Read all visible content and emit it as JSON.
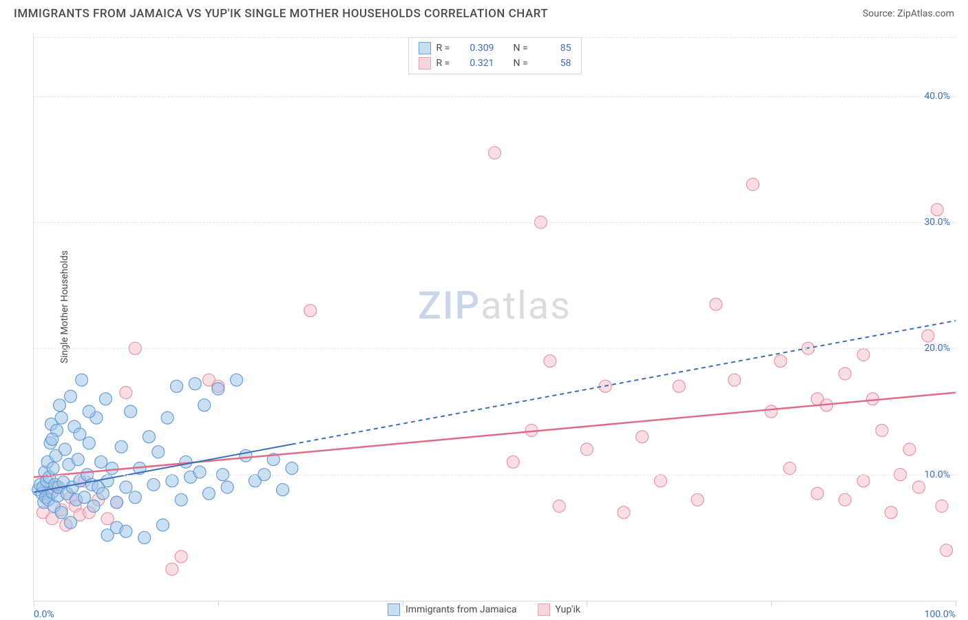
{
  "title": "IMMIGRANTS FROM JAMAICA VS YUP'IK SINGLE MOTHER HOUSEHOLDS CORRELATION CHART",
  "source_prefix": "Source: ",
  "source_link": "ZipAtlas.com",
  "y_axis_label": "Single Mother Households",
  "watermark_part1": "ZIP",
  "watermark_part2": "atlas",
  "chart": {
    "type": "scatter",
    "xlim": [
      0,
      100
    ],
    "ylim": [
      0,
      45
    ],
    "background_color": "#ffffff",
    "grid_color": "#e5e5e5",
    "axis_line_color": "#e0e0e0",
    "marker_radius": 9,
    "marker_opacity": 0.55,
    "marker_stroke_opacity": 0.9,
    "label_fontsize": 14,
    "title_fontsize": 17,
    "tick_label_color": "#3a6fb7",
    "y_ticks": [
      {
        "v": 10,
        "label": "10.0%"
      },
      {
        "v": 20,
        "label": "20.0%"
      },
      {
        "v": 30,
        "label": "30.0%"
      },
      {
        "v": 40,
        "label": "40.0%"
      }
    ],
    "x_ticks": [
      0,
      20,
      40,
      60,
      80,
      100
    ],
    "x_tick_labels": {
      "0": "0.0%",
      "100": "100.0%"
    },
    "series": {
      "jamaica": {
        "label": "Immigrants from Jamaica",
        "fill": "#9ec4e8",
        "stroke": "#5a93cf",
        "swatch_fill": "#c6ddf2",
        "swatch_stroke": "#6da0d6",
        "R": "0.309",
        "N": "85",
        "trend": {
          "solid": {
            "x1": 0,
            "y1": 8.6,
            "x2": 28,
            "y2": 12.4
          },
          "dashed": {
            "x1": 28,
            "y1": 12.4,
            "x2": 100,
            "y2": 22.2
          },
          "color": "#3a6fb7",
          "width": 2,
          "dash": "6,5"
        },
        "points": [
          [
            0.5,
            8.8
          ],
          [
            0.7,
            9.2
          ],
          [
            0.9,
            8.5
          ],
          [
            1.0,
            9.0
          ],
          [
            1.1,
            7.8
          ],
          [
            1.2,
            10.2
          ],
          [
            1.3,
            8.2
          ],
          [
            1.4,
            9.5
          ],
          [
            1.5,
            11.0
          ],
          [
            1.6,
            8.0
          ],
          [
            1.7,
            9.8
          ],
          [
            1.8,
            12.5
          ],
          [
            1.9,
            14.0
          ],
          [
            2.0,
            8.6
          ],
          [
            2.1,
            10.5
          ],
          [
            2.2,
            7.5
          ],
          [
            2.3,
            9.2
          ],
          [
            2.4,
            11.5
          ],
          [
            2.5,
            13.5
          ],
          [
            2.6,
            8.3
          ],
          [
            2.7,
            9.0
          ],
          [
            2.8,
            15.5
          ],
          [
            3.0,
            7.0
          ],
          [
            3.2,
            9.4
          ],
          [
            3.4,
            12.0
          ],
          [
            3.6,
            8.5
          ],
          [
            3.8,
            10.8
          ],
          [
            4.0,
            6.2
          ],
          [
            4.2,
            9.0
          ],
          [
            4.4,
            13.8
          ],
          [
            4.6,
            8.0
          ],
          [
            4.8,
            11.2
          ],
          [
            5.0,
            9.5
          ],
          [
            5.2,
            17.5
          ],
          [
            5.5,
            8.2
          ],
          [
            5.8,
            10.0
          ],
          [
            6.0,
            12.5
          ],
          [
            6.3,
            9.2
          ],
          [
            6.5,
            7.5
          ],
          [
            6.8,
            14.5
          ],
          [
            7.0,
            9.0
          ],
          [
            7.3,
            11.0
          ],
          [
            7.5,
            8.5
          ],
          [
            7.8,
            16.0
          ],
          [
            8.0,
            9.5
          ],
          [
            8.5,
            10.5
          ],
          [
            9.0,
            7.8
          ],
          [
            9.5,
            12.2
          ],
          [
            10.0,
            9.0
          ],
          [
            10.5,
            15.0
          ],
          [
            11.0,
            8.2
          ],
          [
            11.5,
            10.5
          ],
          [
            12.0,
            5.0
          ],
          [
            12.5,
            13.0
          ],
          [
            13.0,
            9.2
          ],
          [
            13.5,
            11.8
          ],
          [
            14.0,
            6.0
          ],
          [
            14.5,
            14.5
          ],
          [
            15.0,
            9.5
          ],
          [
            15.5,
            17.0
          ],
          [
            16.0,
            8.0
          ],
          [
            16.5,
            11.0
          ],
          [
            17.0,
            9.8
          ],
          [
            17.5,
            17.2
          ],
          [
            18.0,
            10.2
          ],
          [
            18.5,
            15.5
          ],
          [
            19.0,
            8.5
          ],
          [
            20.0,
            16.8
          ],
          [
            20.5,
            10.0
          ],
          [
            21.0,
            9.0
          ],
          [
            22.0,
            17.5
          ],
          [
            23.0,
            11.5
          ],
          [
            24.0,
            9.5
          ],
          [
            25.0,
            10.0
          ],
          [
            26.0,
            11.2
          ],
          [
            27.0,
            8.8
          ],
          [
            28.0,
            10.5
          ],
          [
            8.0,
            5.2
          ],
          [
            9.0,
            5.8
          ],
          [
            10.0,
            5.5
          ],
          [
            3.0,
            14.5
          ],
          [
            4.0,
            16.2
          ],
          [
            5.0,
            13.2
          ],
          [
            6.0,
            15.0
          ],
          [
            2.0,
            12.8
          ]
        ]
      },
      "yupik": {
        "label": "Yup'ik",
        "fill": "#f4c2ce",
        "stroke": "#e68aa0",
        "swatch_fill": "#f7d5dd",
        "swatch_stroke": "#eb9fb1",
        "R": "0.321",
        "N": "58",
        "trend": {
          "solid": {
            "x1": 0,
            "y1": 9.8,
            "x2": 100,
            "y2": 16.5
          },
          "color": "#e06b87",
          "width": 2.5
        },
        "points": [
          [
            1.0,
            7.0
          ],
          [
            1.5,
            8.5
          ],
          [
            2.0,
            6.5
          ],
          [
            2.5,
            9.0
          ],
          [
            3.0,
            7.2
          ],
          [
            3.5,
            6.0
          ],
          [
            4.0,
            8.2
          ],
          [
            4.5,
            7.5
          ],
          [
            5.0,
            6.8
          ],
          [
            5.5,
            9.5
          ],
          [
            6.0,
            7.0
          ],
          [
            7.0,
            8.0
          ],
          [
            8.0,
            6.5
          ],
          [
            9.0,
            7.8
          ],
          [
            10.0,
            16.5
          ],
          [
            11.0,
            20.0
          ],
          [
            15.0,
            2.5
          ],
          [
            16.0,
            3.5
          ],
          [
            19.0,
            17.5
          ],
          [
            20.0,
            17.0
          ],
          [
            30.0,
            23.0
          ],
          [
            50.0,
            35.5
          ],
          [
            52.0,
            11.0
          ],
          [
            54.0,
            13.5
          ],
          [
            55.0,
            30.0
          ],
          [
            56.0,
            19.0
          ],
          [
            57.0,
            7.5
          ],
          [
            60.0,
            12.0
          ],
          [
            62.0,
            17.0
          ],
          [
            64.0,
            7.0
          ],
          [
            66.0,
            13.0
          ],
          [
            68.0,
            9.5
          ],
          [
            70.0,
            17.0
          ],
          [
            72.0,
            8.0
          ],
          [
            74.0,
            23.5
          ],
          [
            76.0,
            17.5
          ],
          [
            78.0,
            33.0
          ],
          [
            80.0,
            15.0
          ],
          [
            81.0,
            19.0
          ],
          [
            82.0,
            10.5
          ],
          [
            84.0,
            20.0
          ],
          [
            85.0,
            16.0
          ],
          [
            86.0,
            15.5
          ],
          [
            88.0,
            18.0
          ],
          [
            90.0,
            19.5
          ],
          [
            91.0,
            16.0
          ],
          [
            92.0,
            13.5
          ],
          [
            93.0,
            7.0
          ],
          [
            94.0,
            10.0
          ],
          [
            95.0,
            12.0
          ],
          [
            96.0,
            9.0
          ],
          [
            97.0,
            21.0
          ],
          [
            98.0,
            31.0
          ],
          [
            98.5,
            7.5
          ],
          [
            99.0,
            4.0
          ],
          [
            85.0,
            8.5
          ],
          [
            88.0,
            8.0
          ],
          [
            90.0,
            9.5
          ]
        ]
      }
    }
  },
  "legend_stats": {
    "r_label": "R =",
    "n_label": "N ="
  }
}
